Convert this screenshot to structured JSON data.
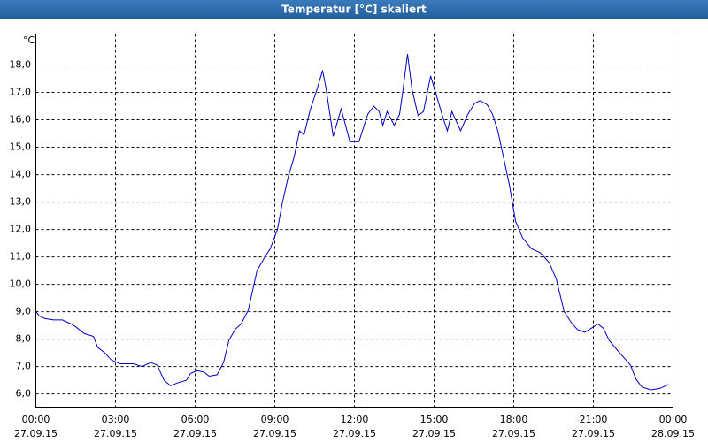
{
  "chart_data": {
    "type": "line",
    "title": "Temperatur [°C] skaliert",
    "y_label": "°C",
    "x": [
      0,
      0.13,
      0.33,
      0.67,
      1.0,
      1.33,
      1.5,
      1.83,
      2.17,
      2.33,
      2.6,
      2.83,
      3.17,
      3.67,
      4.0,
      4.33,
      4.57,
      4.83,
      5.07,
      5.33,
      5.67,
      5.83,
      6.07,
      6.33,
      6.53,
      6.83,
      7.07,
      7.27,
      7.5,
      7.73,
      8.0,
      8.33,
      8.6,
      8.83,
      9.1,
      9.27,
      9.5,
      9.73,
      9.93,
      10.1,
      10.33,
      10.57,
      10.8,
      10.93,
      11.2,
      11.5,
      11.83,
      12.17,
      12.5,
      12.73,
      12.93,
      13.07,
      13.23,
      13.5,
      13.7,
      13.83,
      14.0,
      14.17,
      14.4,
      14.6,
      14.87,
      15.1,
      15.33,
      15.5,
      15.67,
      16.0,
      16.27,
      16.53,
      16.73,
      17.0,
      17.2,
      17.4,
      17.6,
      17.83,
      18.07,
      18.33,
      18.67,
      19.0,
      19.33,
      19.6,
      19.9,
      20.17,
      20.4,
      20.67,
      20.93,
      21.17,
      21.37,
      21.6,
      21.9,
      22.17,
      22.4,
      22.6,
      22.83,
      23.17,
      23.5,
      23.73,
      23.83
    ],
    "series": [
      {
        "name": "Temperatur",
        "color": "#0000c0",
        "values": [
          9.0,
          8.85,
          8.75,
          8.7,
          8.7,
          8.55,
          8.45,
          8.2,
          8.1,
          7.7,
          7.5,
          7.25,
          7.1,
          7.1,
          7.0,
          7.15,
          7.05,
          6.5,
          6.3,
          6.4,
          6.5,
          6.75,
          6.85,
          6.8,
          6.65,
          6.7,
          7.15,
          7.95,
          8.35,
          8.55,
          9.05,
          10.5,
          10.95,
          11.3,
          12.0,
          12.9,
          13.9,
          14.65,
          15.6,
          15.45,
          16.35,
          17.05,
          17.8,
          17.15,
          15.4,
          16.4,
          15.2,
          15.2,
          16.2,
          16.5,
          16.3,
          15.8,
          16.3,
          15.8,
          16.2,
          17.1,
          18.4,
          17.1,
          16.15,
          16.3,
          17.6,
          16.85,
          16.1,
          15.6,
          16.3,
          15.6,
          16.2,
          16.6,
          16.7,
          16.55,
          16.2,
          15.6,
          14.7,
          13.65,
          12.3,
          11.7,
          11.3,
          11.15,
          10.8,
          10.2,
          9.0,
          8.6,
          8.35,
          8.25,
          8.4,
          8.55,
          8.4,
          7.95,
          7.6,
          7.3,
          7.05,
          6.55,
          6.25,
          6.15,
          6.2,
          6.3,
          6.35
        ]
      }
    ],
    "xlim": [
      0,
      24
    ],
    "xticks": [
      {
        "value": 0,
        "label": "00:00"
      },
      {
        "value": 3,
        "label": "03:00"
      },
      {
        "value": 6,
        "label": "06:00"
      },
      {
        "value": 9,
        "label": "09:00"
      },
      {
        "value": 12,
        "label": "12:00"
      },
      {
        "value": 15,
        "label": "15:00"
      },
      {
        "value": 18,
        "label": "18:00"
      },
      {
        "value": 21,
        "label": "21:00"
      },
      {
        "value": 24,
        "label": "00:00"
      }
    ],
    "xtick_dates": [
      "27.09.15",
      "27.09.15",
      "27.09.15",
      "27.09.15",
      "27.09.15",
      "27.09.15",
      "27.09.15",
      "27.09.15",
      "28.09.15"
    ],
    "ylim": [
      5.52,
      19.13
    ],
    "yticks": [
      {
        "value": 6,
        "label": "6,0"
      },
      {
        "value": 7,
        "label": "7,0"
      },
      {
        "value": 8,
        "label": "8,0"
      },
      {
        "value": 9,
        "label": "9,0"
      },
      {
        "value": 10,
        "label": "10,0"
      },
      {
        "value": 11,
        "label": "11,0"
      },
      {
        "value": 12,
        "label": "12,0"
      },
      {
        "value": 13,
        "label": "13,0"
      },
      {
        "value": 14,
        "label": "14,0"
      },
      {
        "value": 15,
        "label": "15,0"
      },
      {
        "value": 16,
        "label": "16,0"
      },
      {
        "value": 17,
        "label": "17,0"
      },
      {
        "value": 18,
        "label": "18,0"
      }
    ],
    "grid": true
  }
}
